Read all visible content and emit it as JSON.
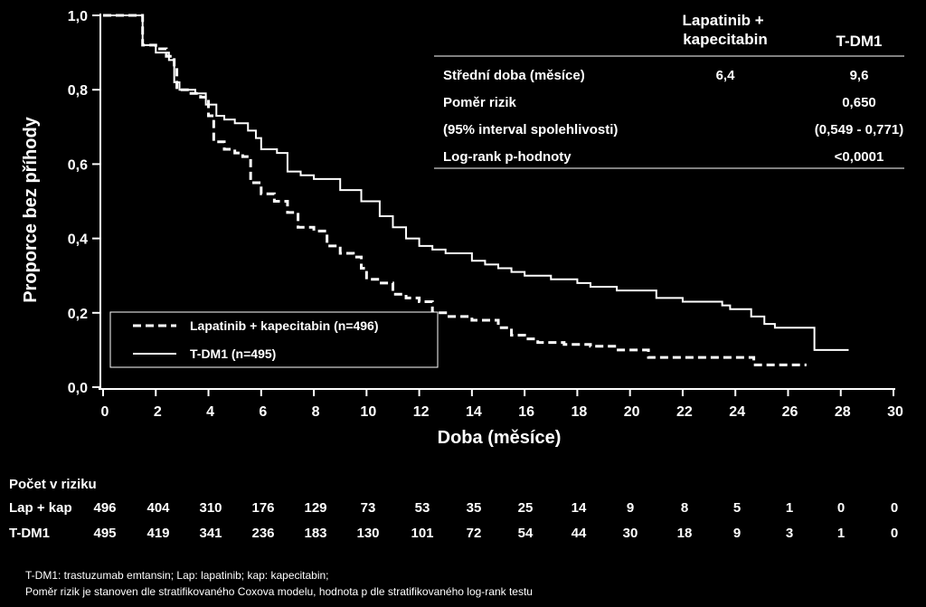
{
  "chart_data": {
    "type": "line",
    "title": "",
    "xlabel": "Doba (měsíce)",
    "ylabel": "Proporce bez příhody",
    "xlim": [
      0,
      30
    ],
    "ylim": [
      0,
      1
    ],
    "x_ticks": [
      "0",
      "2",
      "4",
      "6",
      "8",
      "10",
      "12",
      "14",
      "16",
      "18",
      "20",
      "22",
      "24",
      "26",
      "28",
      "30"
    ],
    "y_ticks": [
      "0,0",
      "0,2",
      "0,4",
      "0,6",
      "0,8",
      "1,0"
    ],
    "grid": false,
    "legend_position": "bottom-left",
    "series": [
      {
        "name": "Lapatinib + kapecitabin (n=496)",
        "style": "dashed",
        "color": "#ffffff",
        "points": [
          [
            0,
            1.0
          ],
          [
            1.2,
            1.0
          ],
          [
            1.5,
            0.92
          ],
          [
            2.0,
            0.91
          ],
          [
            2.4,
            0.89
          ],
          [
            2.7,
            0.86
          ],
          [
            2.8,
            0.8
          ],
          [
            3.2,
            0.79
          ],
          [
            3.7,
            0.78
          ],
          [
            4.0,
            0.73
          ],
          [
            4.2,
            0.66
          ],
          [
            4.6,
            0.64
          ],
          [
            5.0,
            0.63
          ],
          [
            5.3,
            0.62
          ],
          [
            5.6,
            0.55
          ],
          [
            6.0,
            0.52
          ],
          [
            6.5,
            0.5
          ],
          [
            7.0,
            0.47
          ],
          [
            7.4,
            0.43
          ],
          [
            8.0,
            0.42
          ],
          [
            8.5,
            0.38
          ],
          [
            9.0,
            0.36
          ],
          [
            9.5,
            0.35
          ],
          [
            9.8,
            0.32
          ],
          [
            10.0,
            0.29
          ],
          [
            10.5,
            0.28
          ],
          [
            11.0,
            0.25
          ],
          [
            11.5,
            0.24
          ],
          [
            12.0,
            0.23
          ],
          [
            12.5,
            0.2
          ],
          [
            13.0,
            0.19
          ],
          [
            14.0,
            0.18
          ],
          [
            15.0,
            0.16
          ],
          [
            15.5,
            0.14
          ],
          [
            16.0,
            0.13
          ],
          [
            16.5,
            0.12
          ],
          [
            17.5,
            0.115
          ],
          [
            18.5,
            0.11
          ],
          [
            19.5,
            0.1
          ],
          [
            20.7,
            0.08
          ],
          [
            21.5,
            0.08
          ],
          [
            24.0,
            0.08
          ],
          [
            24.7,
            0.06
          ],
          [
            26.7,
            0.06
          ]
        ]
      },
      {
        "name": "T-DM1 (n=495)",
        "style": "solid",
        "color": "#ffffff",
        "points": [
          [
            0,
            1.0
          ],
          [
            1.2,
            1.0
          ],
          [
            1.5,
            0.92
          ],
          [
            2.0,
            0.9
          ],
          [
            2.5,
            0.88
          ],
          [
            2.7,
            0.82
          ],
          [
            2.9,
            0.8
          ],
          [
            3.5,
            0.79
          ],
          [
            3.9,
            0.76
          ],
          [
            4.3,
            0.73
          ],
          [
            4.6,
            0.72
          ],
          [
            5.0,
            0.71
          ],
          [
            5.5,
            0.69
          ],
          [
            5.8,
            0.67
          ],
          [
            6.0,
            0.64
          ],
          [
            6.6,
            0.63
          ],
          [
            7.0,
            0.58
          ],
          [
            7.5,
            0.57
          ],
          [
            8.0,
            0.56
          ],
          [
            9.0,
            0.53
          ],
          [
            9.8,
            0.5
          ],
          [
            10.5,
            0.46
          ],
          [
            11.0,
            0.43
          ],
          [
            11.5,
            0.4
          ],
          [
            12.0,
            0.38
          ],
          [
            12.5,
            0.37
          ],
          [
            13.0,
            0.36
          ],
          [
            14.0,
            0.34
          ],
          [
            14.5,
            0.33
          ],
          [
            15.0,
            0.32
          ],
          [
            15.5,
            0.31
          ],
          [
            16.0,
            0.3
          ],
          [
            17.0,
            0.29
          ],
          [
            18.0,
            0.28
          ],
          [
            18.5,
            0.27
          ],
          [
            19.5,
            0.26
          ],
          [
            20.0,
            0.26
          ],
          [
            20.8,
            0.26
          ],
          [
            21.0,
            0.24
          ],
          [
            22.0,
            0.23
          ],
          [
            23.5,
            0.22
          ],
          [
            23.8,
            0.21
          ],
          [
            24.6,
            0.19
          ],
          [
            25.1,
            0.17
          ],
          [
            25.5,
            0.16
          ],
          [
            26.5,
            0.16
          ],
          [
            27.0,
            0.1
          ],
          [
            28.3,
            0.1
          ]
        ]
      }
    ]
  },
  "stats_table": {
    "col_lap": "Lapatinib +\nkapecitabin",
    "col_tdm1": "T-DM1",
    "rows": [
      {
        "label": "Střední doba (měsíce)",
        "lap": "6,4",
        "tdm1": "9,6"
      },
      {
        "label": "Poměr rizik",
        "lap": "",
        "tdm1": "0,650"
      },
      {
        "label": "(95% interval spolehlivosti)",
        "lap": "",
        "tdm1": "(0,549 - 0,771)"
      },
      {
        "label": "Log-rank p-hodnoty",
        "lap": "",
        "tdm1": "<0,0001"
      }
    ]
  },
  "at_risk": {
    "title": "Počet v riziku",
    "rows": [
      {
        "label": "Lap + kap",
        "values": [
          "496",
          "404",
          "310",
          "176",
          "129",
          "73",
          "53",
          "35",
          "25",
          "14",
          "9",
          "8",
          "5",
          "1",
          "0",
          "0"
        ]
      },
      {
        "label": "T-DM1",
        "values": [
          "495",
          "419",
          "341",
          "236",
          "183",
          "130",
          "101",
          "72",
          "54",
          "44",
          "30",
          "18",
          "9",
          "3",
          "1",
          "0"
        ]
      }
    ]
  },
  "footnote": {
    "line1": "T-DM1: trastuzumab emtansin; Lap: lapatinib; kap: kapecitabin;",
    "line2": "Poměr rizik je stanoven dle stratifikovaného Coxova modelu, hodnota p dle stratifikovaného log-rank testu"
  }
}
